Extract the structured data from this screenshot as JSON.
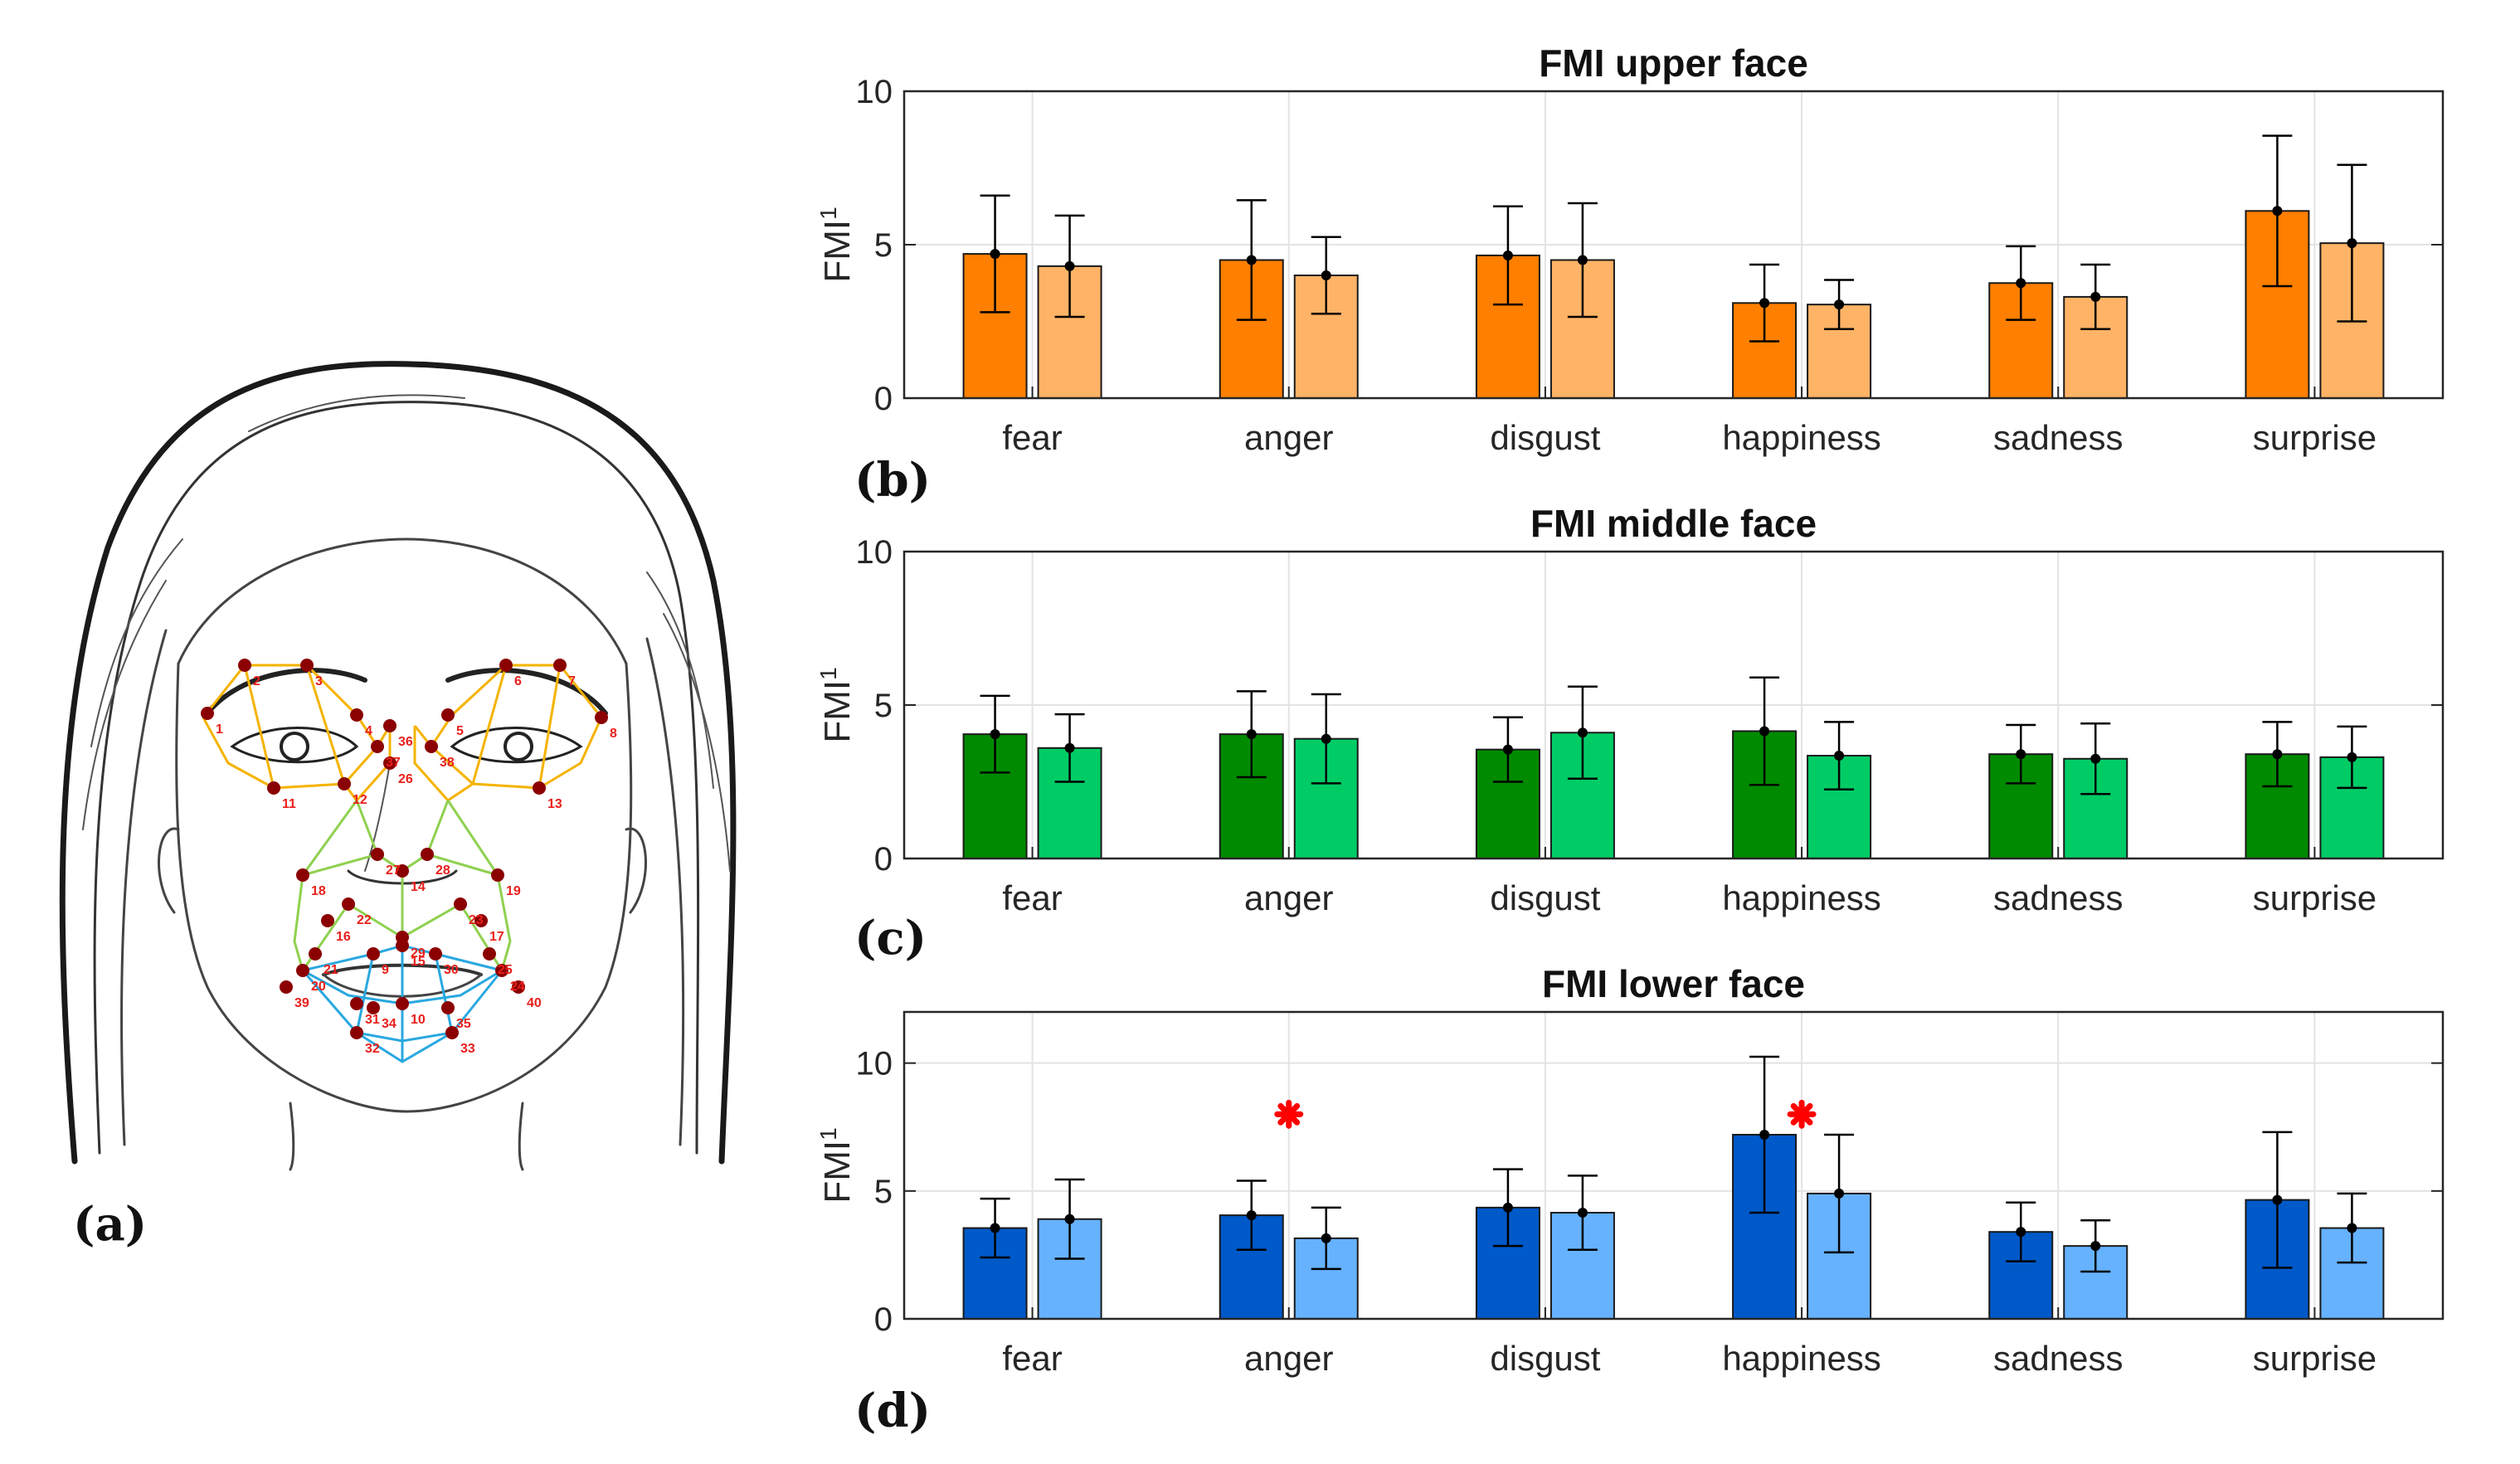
{
  "labels": {
    "a": "(a)",
    "b": "(b)",
    "c": "(c)",
    "d": "(d)"
  },
  "landmark_numbers": [
    "1",
    "2",
    "3",
    "4",
    "5",
    "6",
    "7",
    "8",
    "11",
    "12",
    "13",
    "36",
    "37",
    "38",
    "26",
    "27",
    "28",
    "14",
    "18",
    "19",
    "22",
    "23",
    "29",
    "16",
    "17",
    "20",
    "21",
    "24",
    "25",
    "39",
    "40",
    "9",
    "10",
    "15",
    "30",
    "31",
    "34",
    "35",
    "32",
    "33"
  ],
  "colors": {
    "upper": [
      "#ff7f00",
      "#ffb366"
    ],
    "middle": [
      "#008a00",
      "#00cc66"
    ],
    "lower": [
      "#0059c8",
      "#66b2ff"
    ],
    "significance": "#ff0000",
    "landmark_point": "#8b0000",
    "landmark_label": "#e8201c",
    "eye_lines": "#f5b300",
    "nose_lines": "#8fd14f",
    "mouth_lines": "#29a8e0"
  },
  "chart_data": [
    {
      "type": "bar",
      "title": "FMI upper face",
      "ylabel": "FMI",
      "ylabel_superscript": "1",
      "ylim": [
        0,
        10
      ],
      "yticks": [
        0,
        5,
        10
      ],
      "grid": true,
      "categories": [
        "fear",
        "anger",
        "disgust",
        "happiness",
        "sadness",
        "surprise"
      ],
      "series": [
        {
          "values": [
            4.7,
            4.5,
            4.65,
            3.1,
            3.75,
            6.1
          ],
          "errors": [
            1.9,
            1.95,
            1.6,
            1.25,
            1.2,
            2.45
          ]
        },
        {
          "values": [
            4.3,
            4.0,
            4.5,
            3.05,
            3.3,
            5.05
          ],
          "errors": [
            1.65,
            1.25,
            1.85,
            0.8,
            1.05,
            2.55
          ]
        }
      ],
      "significant": []
    },
    {
      "type": "bar",
      "title": "FMI middle face",
      "ylabel": "FMI",
      "ylabel_superscript": "1",
      "ylim": [
        0,
        10
      ],
      "yticks": [
        0,
        5,
        10
      ],
      "grid": true,
      "categories": [
        "fear",
        "anger",
        "disgust",
        "happiness",
        "sadness",
        "surprise"
      ],
      "series": [
        {
          "values": [
            4.05,
            4.05,
            3.55,
            4.15,
            3.4,
            3.4
          ],
          "errors": [
            1.25,
            1.4,
            1.05,
            1.75,
            0.95,
            1.05
          ]
        },
        {
          "values": [
            3.6,
            3.9,
            4.1,
            3.35,
            3.25,
            3.3
          ],
          "errors": [
            1.1,
            1.45,
            1.5,
            1.1,
            1.15,
            1.0
          ]
        }
      ],
      "significant": []
    },
    {
      "type": "bar",
      "title": "FMI lower face",
      "ylabel": "FMI",
      "ylabel_superscript": "1",
      "ylim": [
        0,
        12
      ],
      "yticks": [
        0,
        5,
        10
      ],
      "grid": true,
      "categories": [
        "fear",
        "anger",
        "disgust",
        "happiness",
        "sadness",
        "surprise"
      ],
      "series": [
        {
          "values": [
            3.55,
            4.05,
            4.35,
            7.2,
            3.4,
            4.65
          ],
          "errors": [
            1.15,
            1.35,
            1.5,
            3.05,
            1.15,
            2.65
          ]
        },
        {
          "values": [
            3.9,
            3.15,
            4.15,
            4.9,
            2.85,
            3.55
          ],
          "errors": [
            1.55,
            1.2,
            1.45,
            2.3,
            1.0,
            1.35
          ]
        }
      ],
      "significant": [
        {
          "category": "anger",
          "y": 8.0
        },
        {
          "category": "happiness",
          "y": 8.0
        }
      ]
    }
  ]
}
